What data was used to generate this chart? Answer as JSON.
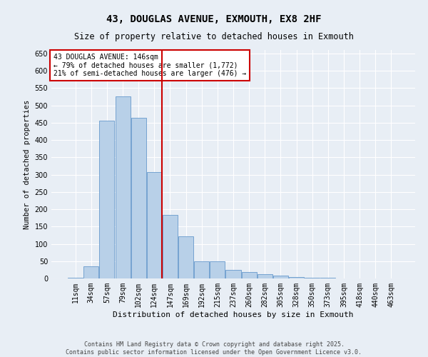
{
  "title1": "43, DOUGLAS AVENUE, EXMOUTH, EX8 2HF",
  "title2": "Size of property relative to detached houses in Exmouth",
  "xlabel": "Distribution of detached houses by size in Exmouth",
  "ylabel": "Number of detached properties",
  "annotation_line1": "43 DOUGLAS AVENUE: 146sqm",
  "annotation_line2": "← 79% of detached houses are smaller (1,772)",
  "annotation_line3": "21% of semi-detached houses are larger (476) →",
  "footer1": "Contains HM Land Registry data © Crown copyright and database right 2025.",
  "footer2": "Contains public sector information licensed under the Open Government Licence v3.0.",
  "categories": [
    "11sqm",
    "34sqm",
    "57sqm",
    "79sqm",
    "102sqm",
    "124sqm",
    "147sqm",
    "169sqm",
    "192sqm",
    "215sqm",
    "237sqm",
    "260sqm",
    "282sqm",
    "305sqm",
    "328sqm",
    "350sqm",
    "373sqm",
    "395sqm",
    "418sqm",
    "440sqm",
    "463sqm"
  ],
  "values": [
    2,
    35,
    455,
    525,
    465,
    308,
    183,
    122,
    50,
    50,
    25,
    18,
    12,
    8,
    5,
    3,
    2,
    1,
    1,
    0,
    1
  ],
  "bar_color": "#b8d0e8",
  "bar_edge_color": "#6699cc",
  "vline_color": "#cc0000",
  "bg_color": "#e8eef5",
  "grid_color": "#ffffff",
  "ylim": [
    0,
    660
  ],
  "yticks": [
    0,
    50,
    100,
    150,
    200,
    250,
    300,
    350,
    400,
    450,
    500,
    550,
    600,
    650
  ],
  "annotation_box_edge_color": "#cc0000",
  "title1_fontsize": 10,
  "title2_fontsize": 8.5,
  "ylabel_fontsize": 7.5,
  "xlabel_fontsize": 8,
  "tick_fontsize": 7,
  "footer_fontsize": 6
}
